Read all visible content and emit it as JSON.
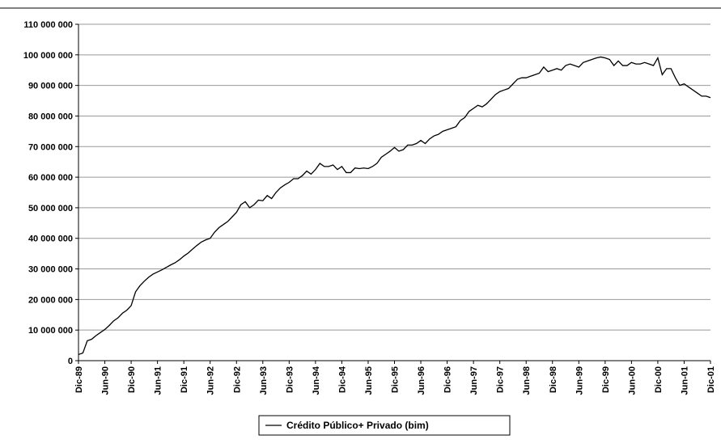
{
  "chart_data": {
    "type": "line",
    "categories": [
      "Dic-89",
      null,
      null,
      null,
      null,
      null,
      "Jun-90",
      null,
      null,
      null,
      null,
      null,
      "Dic-90",
      null,
      null,
      null,
      null,
      null,
      "Jun-91",
      null,
      null,
      null,
      null,
      null,
      "Dic-91",
      null,
      null,
      null,
      null,
      null,
      "Jun-92",
      null,
      null,
      null,
      null,
      null,
      "Dic-92",
      null,
      null,
      null,
      null,
      null,
      "Jun-93",
      null,
      null,
      null,
      null,
      null,
      "Dic-93",
      null,
      null,
      null,
      null,
      null,
      "Jun-94",
      null,
      null,
      null,
      null,
      null,
      "Dic-94",
      null,
      null,
      null,
      null,
      null,
      "Jun-95",
      null,
      null,
      null,
      null,
      null,
      "Dic-95",
      null,
      null,
      null,
      null,
      null,
      "Jun-96",
      null,
      null,
      null,
      null,
      null,
      "Dic-96",
      null,
      null,
      null,
      null,
      null,
      "Jun-97",
      null,
      null,
      null,
      null,
      null,
      "Dic-97",
      null,
      null,
      null,
      null,
      null,
      "Jun-98",
      null,
      null,
      null,
      null,
      null,
      "Dic-98",
      null,
      null,
      null,
      null,
      null,
      "Jun-99",
      null,
      null,
      null,
      null,
      null,
      "Dic-99",
      null,
      null,
      null,
      null,
      null,
      "Jun-00",
      null,
      null,
      null,
      null,
      null,
      "Dic-00",
      null,
      null,
      null,
      null,
      null,
      "Jun-01",
      null,
      null,
      null,
      null,
      null,
      "Dic-01"
    ],
    "series": [
      {
        "name": "Crédito Público+ Privado (bim)",
        "color": "#000000",
        "values": [
          2000000,
          2500000,
          6500000,
          7000000,
          8200000,
          9200000,
          10200000,
          11500000,
          13000000,
          14000000,
          15500000,
          16500000,
          18000000,
          22500000,
          24500000,
          26000000,
          27300000,
          28300000,
          29000000,
          29700000,
          30500000,
          31300000,
          32000000,
          33000000,
          34200000,
          35200000,
          36500000,
          37700000,
          38800000,
          39500000,
          40000000,
          42000000,
          43500000,
          44500000,
          45500000,
          47000000,
          48500000,
          51000000,
          52000000,
          50000000,
          51000000,
          52500000,
          52300000,
          54000000,
          53000000,
          55000000,
          56500000,
          57500000,
          58300000,
          59500000,
          59500000,
          60500000,
          62000000,
          61000000,
          62500000,
          64500000,
          63500000,
          63500000,
          64000000,
          62500000,
          63500000,
          61500000,
          61500000,
          63000000,
          62800000,
          63000000,
          62800000,
          63500000,
          64500000,
          66500000,
          67500000,
          68500000,
          69700000,
          68500000,
          69000000,
          70500000,
          70500000,
          71000000,
          72000000,
          71000000,
          72500000,
          73500000,
          74000000,
          75000000,
          75500000,
          76000000,
          76500000,
          78500000,
          79500000,
          81500000,
          82500000,
          83500000,
          83000000,
          84000000,
          85500000,
          87000000,
          88000000,
          88500000,
          89000000,
          90500000,
          92000000,
          92500000,
          92500000,
          93000000,
          93500000,
          94000000,
          96000000,
          94500000,
          95000000,
          95500000,
          95000000,
          96500000,
          97000000,
          96500000,
          96000000,
          97500000,
          98000000,
          98500000,
          99000000,
          99300000,
          99000000,
          98500000,
          96500000,
          98000000,
          96500000,
          96500000,
          97500000,
          97000000,
          97000000,
          97500000,
          97000000,
          96500000,
          99000000,
          93500000,
          95500000,
          95500000,
          92500000,
          90000000,
          90500000,
          89500000,
          88500000,
          87500000,
          86500000,
          86500000,
          86000000
        ]
      }
    ],
    "ylim": [
      0,
      110000000
    ],
    "yticks": [
      0,
      {
        "value": 10000000,
        "label": "10 000 000"
      },
      {
        "value": 20000000,
        "label": "20 000 000"
      },
      {
        "value": 30000000,
        "label": "30 000 000"
      },
      {
        "value": 40000000,
        "label": "40 000 000"
      },
      {
        "value": 50000000,
        "label": "50 000 000"
      },
      {
        "value": 60000000,
        "label": "60 000 000"
      },
      {
        "value": 70000000,
        "label": "70 000 000"
      },
      {
        "value": 80000000,
        "label": "80 000 000"
      },
      {
        "value": 90000000,
        "label": "90 000 000"
      },
      {
        "value": 100000000,
        "label": "100 000 000"
      },
      {
        "value": 110000000,
        "label": "110 000 000"
      }
    ],
    "grid": true,
    "legend": "bottom"
  }
}
